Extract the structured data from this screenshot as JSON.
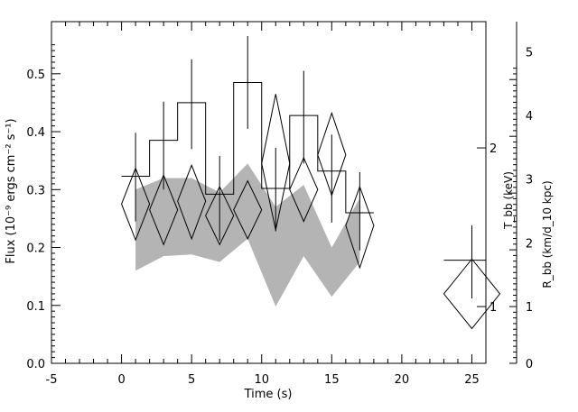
{
  "chart_data": {
    "type": "line",
    "xlabel": "Time (s)",
    "ylabel": "Flux (10⁻⁹ ergs cm⁻² s⁻¹)",
    "ylabel_right_outer": "R_bb (km/d_10 kpc)",
    "ylabel_right_inner": "T_bb (keV)",
    "xlim": [
      -5,
      26
    ],
    "ylim": [
      0,
      0.59
    ],
    "x_ticks": [
      -5,
      0,
      5,
      10,
      15,
      20,
      25
    ],
    "y_ticks": [
      0.0,
      0.1,
      0.2,
      0.3,
      0.4,
      0.5
    ],
    "y_tick_labels": [
      "0.0",
      "0.1",
      "0.2",
      "0.3",
      "0.4",
      "0.5"
    ],
    "right_outer_ticks": [
      {
        "label": "0",
        "flux": 0.0
      },
      {
        "label": "1",
        "flux": 0.098
      },
      {
        "label": "2",
        "flux": 0.208
      },
      {
        "label": "3",
        "flux": 0.318
      },
      {
        "label": "4",
        "flux": 0.428
      },
      {
        "label": "5",
        "flux": 0.538
      }
    ],
    "right_inner_ticks": [
      {
        "label": "1",
        "flux": 0.098
      },
      {
        "label": "2",
        "flux": 0.372
      }
    ],
    "grid": false,
    "series": [
      {
        "style": "histogram_with_errorbars",
        "bins": [
          {
            "x0": 0,
            "x1": 2,
            "x": 1,
            "y": 0.323,
            "ylo": 0.245,
            "yhi": 0.398
          },
          {
            "x0": 2,
            "x1": 4,
            "x": 3,
            "y": 0.385,
            "ylo": 0.3,
            "yhi": 0.452
          },
          {
            "x0": 4,
            "x1": 6,
            "x": 5,
            "y": 0.45,
            "ylo": 0.37,
            "yhi": 0.525
          },
          {
            "x0": 6,
            "x1": 8,
            "x": 7,
            "y": 0.292,
            "ylo": 0.212,
            "yhi": 0.358
          },
          {
            "x0": 8,
            "x1": 10,
            "x": 9,
            "y": 0.485,
            "ylo": 0.405,
            "yhi": 0.565
          },
          {
            "x0": 10,
            "x1": 12,
            "x": 11,
            "y": 0.302,
            "ylo": 0.228,
            "yhi": 0.372
          },
          {
            "x0": 12,
            "x1": 14,
            "x": 13,
            "y": 0.428,
            "ylo": 0.345,
            "yhi": 0.505
          },
          {
            "x0": 14,
            "x1": 16,
            "x": 15,
            "y": 0.332,
            "ylo": 0.243,
            "yhi": 0.395
          },
          {
            "x0": 16,
            "x1": 18,
            "x": 17,
            "y": 0.26,
            "ylo": 0.195,
            "yhi": 0.33
          },
          {
            "x0": 23,
            "x1": 26,
            "x": 25,
            "y": 0.178,
            "ylo": 0.112,
            "yhi": 0.238
          }
        ]
      },
      {
        "style": "diamonds",
        "points": [
          {
            "x": 1,
            "y": 0.275,
            "halfwidth": 1,
            "ylo": 0.213,
            "yhi": 0.337
          },
          {
            "x": 3,
            "y": 0.265,
            "halfwidth": 1,
            "ylo": 0.205,
            "yhi": 0.325
          },
          {
            "x": 5,
            "y": 0.28,
            "halfwidth": 1,
            "ylo": 0.215,
            "yhi": 0.342
          },
          {
            "x": 7,
            "y": 0.255,
            "halfwidth": 1,
            "ylo": 0.205,
            "yhi": 0.305
          },
          {
            "x": 9,
            "y": 0.265,
            "halfwidth": 1,
            "ylo": 0.215,
            "yhi": 0.315
          },
          {
            "x": 11,
            "y": 0.345,
            "halfwidth": 1,
            "ylo": 0.23,
            "yhi": 0.465
          },
          {
            "x": 13,
            "y": 0.3,
            "halfwidth": 1,
            "ylo": 0.245,
            "yhi": 0.355
          },
          {
            "x": 15,
            "y": 0.36,
            "halfwidth": 1,
            "ylo": 0.29,
            "yhi": 0.432
          },
          {
            "x": 17,
            "y": 0.238,
            "halfwidth": 1,
            "ylo": 0.165,
            "yhi": 0.305
          },
          {
            "x": 25,
            "y": 0.12,
            "halfwidth": 2,
            "ylo": 0.06,
            "yhi": 0.18
          }
        ]
      },
      {
        "style": "shaded_band",
        "x": [
          1,
          3,
          5,
          7,
          9,
          11,
          13,
          15,
          17
        ],
        "lower": [
          0.16,
          0.185,
          0.188,
          0.175,
          0.215,
          0.098,
          0.185,
          0.115,
          0.175
        ],
        "upper": [
          0.3,
          0.32,
          0.32,
          0.295,
          0.345,
          0.27,
          0.308,
          0.2,
          0.285
        ]
      }
    ],
    "colors": {
      "band": "#b4b4b4",
      "line": "#000000"
    }
  }
}
